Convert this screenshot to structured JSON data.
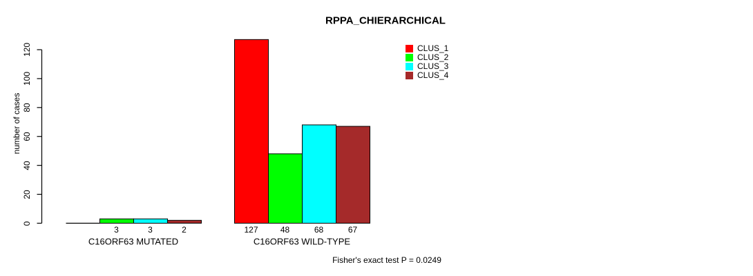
{
  "title": "RPPA_CHIERARCHICAL",
  "y_axis": {
    "label": "number of cases",
    "ticks": [
      "0",
      "20",
      "40",
      "60",
      "80",
      "100",
      "120"
    ]
  },
  "legend": {
    "items": [
      {
        "label": "CLUS_1",
        "color": "#FF0000"
      },
      {
        "label": "CLUS_2",
        "color": "#00FF00"
      },
      {
        "label": "CLUS_3",
        "color": "#00FFFF"
      },
      {
        "label": "CLUS_4",
        "color": "#A52A2A"
      }
    ]
  },
  "footnote": "Fisher's exact test P = 0.0249",
  "chart_data": {
    "type": "bar",
    "title": "RPPA_CHIERARCHICAL",
    "xlabel": "",
    "ylabel": "number of cases",
    "ylim": [
      0,
      120
    ],
    "yticks": [
      0,
      20,
      40,
      60,
      80,
      100,
      120
    ],
    "grid": false,
    "legend_position": "top-right",
    "legend_entries": [
      "CLUS_1",
      "CLUS_2",
      "CLUS_3",
      "CLUS_4"
    ],
    "series_colors": [
      "#FF0000",
      "#00FF00",
      "#00FFFF",
      "#A52A2A"
    ],
    "bar_outline_color": "#000000",
    "groups": [
      {
        "label": "C16ORF63 MUTATED",
        "values": [
          0,
          3,
          3,
          2
        ],
        "value_labels": [
          "",
          "3",
          "3",
          "2"
        ]
      },
      {
        "label": "C16ORF63 WILD-TYPE",
        "values": [
          127,
          48,
          68,
          67
        ],
        "value_labels": [
          "127",
          "48",
          "68",
          "67"
        ]
      }
    ],
    "annotation": "Fisher's exact test P = 0.0249"
  }
}
